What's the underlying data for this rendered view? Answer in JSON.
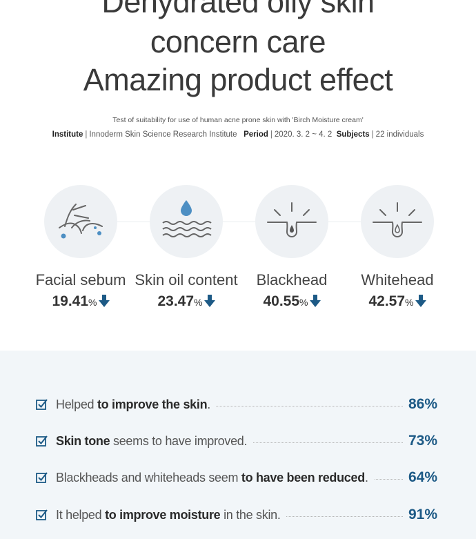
{
  "header": {
    "title_line1": "Dehydrated oily skin",
    "title_line2": "concern care",
    "title_line3": "Amazing product effect",
    "test_description": "Test of suitability for use of human acne prone skin with 'Birch Moisture cream'",
    "institute_label": "Institute",
    "institute_value": "Innoderm Skin Science Research Institute",
    "period_label": "Period",
    "period_value": "2020. 3. 2 ~ 4. 2",
    "subjects_label": "Subjects",
    "subjects_value": "22 individuals",
    "separator": "|"
  },
  "metrics": [
    {
      "label": "Facial sebum",
      "value": "19.41",
      "unit": "%",
      "icon": "hair-follicle-icon"
    },
    {
      "label": "Skin oil content",
      "value": "23.47",
      "unit": "%",
      "icon": "oil-drop-waves-icon"
    },
    {
      "label": "Blackhead",
      "value": "40.55",
      "unit": "%",
      "icon": "blackhead-pore-icon"
    },
    {
      "label": "Whitehead",
      "value": "42.57",
      "unit": "%",
      "icon": "whitehead-pore-icon"
    }
  ],
  "survey": [
    {
      "pre": "Helped ",
      "bold": "to improve the skin",
      "post": ".",
      "value": "86%"
    },
    {
      "pre": "",
      "bold": "Skin tone",
      "post": " seems to have improved.",
      "value": "73%"
    },
    {
      "pre": "Blackheads and whiteheads seem ",
      "bold": "to have been reduced",
      "post": ".",
      "value": "64%"
    },
    {
      "pre": "It helped ",
      "bold": "to improve moisture",
      "post": " in the skin.",
      "value": "91%"
    }
  ],
  "colors": {
    "accent": "#1d5a86",
    "arrow": "#1d5a86",
    "icon_blue": "#4d8fc3",
    "panel_bg": "#f2f6f9",
    "circle_bg": "#eef1f4"
  }
}
